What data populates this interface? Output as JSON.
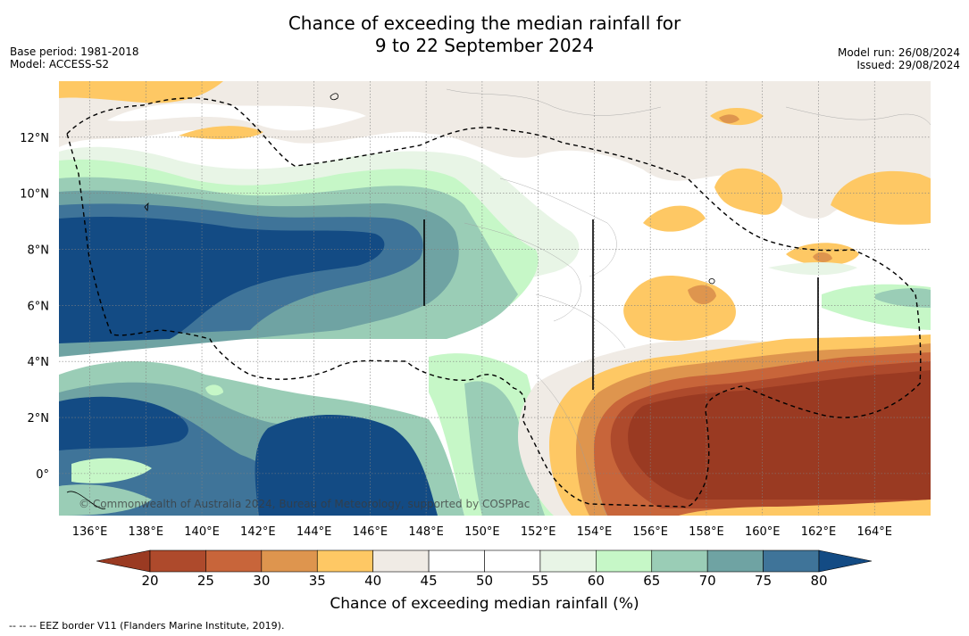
{
  "title_line1": "Chance of exceeding the median rainfall for",
  "title_line2": "9 to 22 September 2024",
  "base_period": "Base period: 1981-2018",
  "model": "Model: ACCESS-S2",
  "model_run": "Model run: 26/08/2024",
  "issued": "Issued: 29/08/2024",
  "credit": "© Commonwealth of Australia 2024, Bureau of Meteorology, supported by COSPPac",
  "footnote": "-- -- -- EEZ border V11 (Flanders Marine Institute, 2019).",
  "map": {
    "lon_ticks": [
      "136°E",
      "138°E",
      "140°E",
      "142°E",
      "144°E",
      "146°E",
      "148°E",
      "150°E",
      "152°E",
      "154°E",
      "156°E",
      "158°E",
      "160°E",
      "162°E",
      "164°E"
    ],
    "lat_ticks": [
      "12°N",
      "10°N",
      "8°N",
      "6°N",
      "4°N",
      "2°N",
      "0°"
    ],
    "lon_range": [
      134.9,
      166.0
    ],
    "lat_range": [
      -1.5,
      14.0
    ]
  },
  "colorbar": {
    "title": "Chance of exceeding median rainfall (%)",
    "labels": [
      "20",
      "25",
      "30",
      "35",
      "40",
      "45",
      "50",
      "55",
      "60",
      "65",
      "70",
      "75",
      "80"
    ],
    "colors": [
      "#9a3a22",
      "#ae4a2c",
      "#c8653a",
      "#de954e",
      "#fec864",
      "#f0ebe5",
      "#ffffff",
      "#ffffff",
      "#e8f5e6",
      "#c6f7c7",
      "#9acdb6",
      "#6fa3a3",
      "#3f7499",
      "#134b84"
    ],
    "extend": "both"
  }
}
